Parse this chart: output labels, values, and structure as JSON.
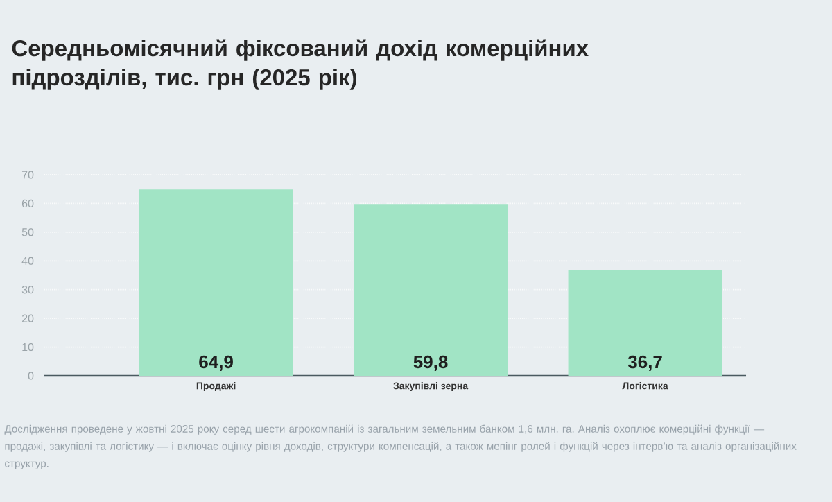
{
  "chart_data": {
    "type": "bar",
    "title": "Середньомісячний фіксований дохід комерційних підрозділів, тис. грн (2025 рік)",
    "categories": [
      "Продажі",
      "Закупівлі зерна",
      "Логістика"
    ],
    "values": [
      64.9,
      59.8,
      36.7
    ],
    "value_labels": [
      "64,9",
      "59,8",
      "36,7"
    ],
    "color": "#a1e4c5",
    "ylim": [
      0,
      70
    ],
    "yticks": [
      0,
      10,
      20,
      30,
      40,
      50,
      60,
      70
    ],
    "grid": "y",
    "annotations": [
      "Дослідження проведене у жовтні 2025 року серед шести агрокомпаній із загальним земельним банком 1,6 млн. га. Аналіз охоплює комерційні функції — продажі, закупівлі та логістику — і включає оцінку рівня доходів, структури компенсацій, а також мепінг ролей і функцій через інтерв’ю та аналіз організаційних структур."
    ]
  }
}
